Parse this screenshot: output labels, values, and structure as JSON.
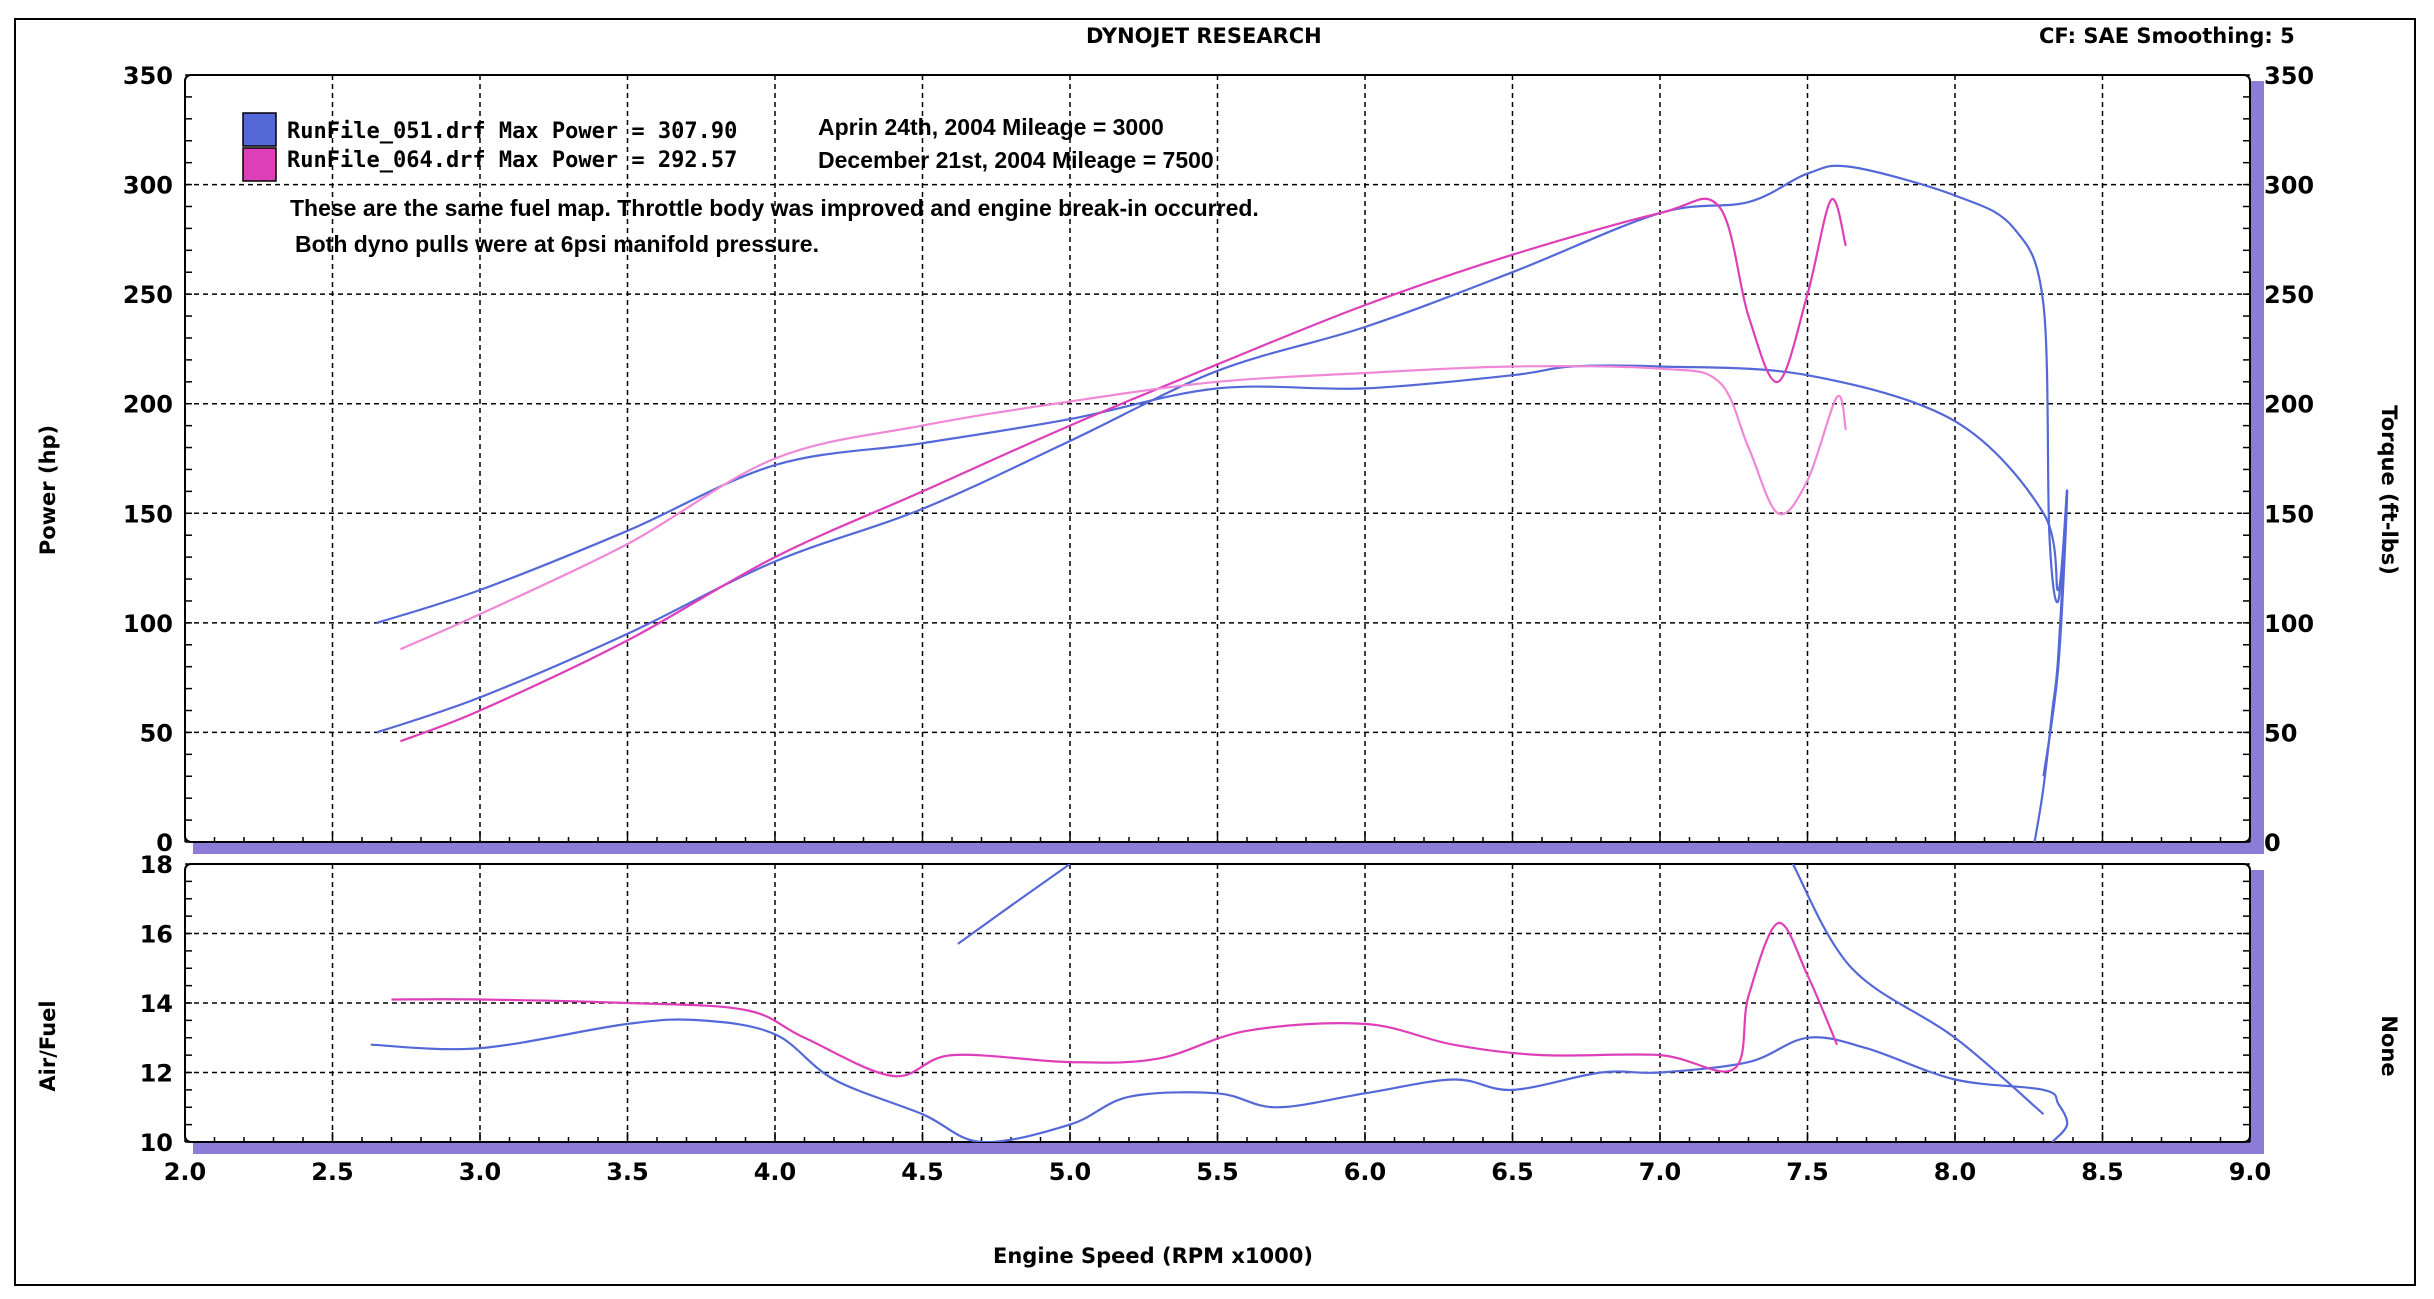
{
  "header": {
    "title": "DYNOJET RESEARCH",
    "correction": "CF: SAE  Smoothing: 5"
  },
  "legend": [
    {
      "label": "RunFile_051.drf Max Power = 307.90",
      "note": "Aprin 24th, 2004  Mileage = 3000",
      "color": "#5468d8"
    },
    {
      "label": "RunFile_064.drf Max Power = 292.57",
      "note": "December 21st, 2004  Mileage = 7500",
      "color": "#de3fb8"
    }
  ],
  "annotation": {
    "line1": "These are the same fuel map.  Throttle body was improved and engine break-in occurred.",
    "line2": "Both dyno pulls were at 6psi manifold pressure."
  },
  "chart_data": [
    {
      "type": "line",
      "xlabel": "Engine Speed (RPM x1000)",
      "ylabel": "Power (hp)",
      "y2label": "Torque (ft-lbs)",
      "xlim": [
        2.0,
        9.0
      ],
      "ylim": [
        0,
        350
      ],
      "y2lim": [
        0,
        350
      ],
      "grid": true,
      "x_ticks": [
        "2.0",
        "2.5",
        "3.0",
        "3.5",
        "4.0",
        "4.5",
        "5.0",
        "5.5",
        "6.0",
        "6.5",
        "7.0",
        "7.5",
        "8.0",
        "8.5",
        "9.0"
      ],
      "y_ticks": [
        "0",
        "50",
        "100",
        "150",
        "200",
        "250",
        "300",
        "350"
      ],
      "series": [
        {
          "name": "RunFile_051.drf Max Power = 307.90",
          "measure": "power",
          "color": "#5468d8",
          "x": [
            2.65,
            3.0,
            3.5,
            4.0,
            4.5,
            5.0,
            5.5,
            6.0,
            6.5,
            7.0,
            7.3,
            7.5,
            7.65,
            8.0,
            8.2,
            8.3,
            8.32,
            8.35,
            8.38,
            8.35,
            8.33,
            8.3,
            8.27
          ],
          "y": [
            50,
            66,
            95,
            128,
            152,
            183,
            215,
            235,
            260,
            287,
            292,
            305,
            308,
            295,
            280,
            245,
            140,
            110,
            160,
            85,
            60,
            25,
            0
          ]
        },
        {
          "name": "RunFile_051.drf Max Power = 307.90",
          "measure": "torque",
          "color": "#5468d8",
          "x": [
            2.65,
            3.0,
            3.5,
            4.0,
            4.5,
            5.0,
            5.5,
            6.0,
            6.5,
            6.7,
            7.0,
            7.5,
            8.0,
            8.3,
            8.35,
            8.38,
            8.35,
            8.3
          ],
          "y": [
            100,
            115,
            142,
            172,
            182,
            193,
            207,
            207,
            213,
            217,
            217,
            213,
            192,
            150,
            115,
            160,
            80,
            30
          ]
        },
        {
          "name": "RunFile_064.drf Max Power = 292.57",
          "measure": "power",
          "color": "#de3fb8",
          "x": [
            2.73,
            3.0,
            3.5,
            4.0,
            4.5,
            5.0,
            5.5,
            6.0,
            6.5,
            7.0,
            7.2,
            7.3,
            7.4,
            7.5,
            7.58,
            7.63
          ],
          "y": [
            46,
            60,
            92,
            130,
            160,
            190,
            218,
            245,
            268,
            287,
            290,
            240,
            210,
            250,
            293,
            272
          ]
        },
        {
          "name": "RunFile_064.drf Max Power = 292.57",
          "measure": "torque",
          "color": "#f088d8",
          "x": [
            2.73,
            3.0,
            3.5,
            4.0,
            4.5,
            5.0,
            5.5,
            6.0,
            6.5,
            7.0,
            7.2,
            7.3,
            7.4,
            7.5,
            7.6,
            7.63
          ],
          "y": [
            88,
            104,
            136,
            175,
            190,
            201,
            210,
            214,
            217,
            216,
            210,
            180,
            150,
            165,
            203,
            188
          ]
        }
      ]
    },
    {
      "type": "line",
      "ylabel": "Air/Fuel",
      "y2label": "None",
      "xlim": [
        2.0,
        9.0
      ],
      "ylim": [
        10,
        18
      ],
      "grid": true,
      "y_ticks": [
        "10",
        "12",
        "14",
        "16",
        "18"
      ],
      "series": [
        {
          "name": "RunFile_051.drf Max Power = 307.90",
          "color": "#5468d8",
          "x": [
            2.63,
            3.0,
            3.5,
            3.75,
            4.0,
            4.2,
            4.5,
            4.7,
            5.0,
            5.2,
            5.5,
            5.7,
            6.0,
            6.3,
            6.5,
            6.8,
            7.0,
            7.3,
            7.5,
            7.7,
            8.0,
            8.3,
            8.35,
            8.38,
            8.33
          ],
          "y": [
            12.8,
            12.7,
            13.4,
            13.5,
            13.1,
            11.8,
            10.8,
            10.0,
            10.5,
            11.3,
            11.4,
            11.0,
            11.4,
            11.8,
            11.5,
            12.0,
            12.0,
            12.3,
            13.0,
            12.7,
            11.8,
            11.5,
            11.1,
            10.5,
            10.0
          ]
        },
        {
          "name": "RunFile_051.drf Max Power = 307.90",
          "color": "#5468d8",
          "x": [
            4.62,
            4.8,
            5.0
          ],
          "y": [
            15.7,
            16.8,
            18.0
          ]
        },
        {
          "name": "RunFile_051.drf Max Power = 307.90",
          "color": "#5468d8",
          "x": [
            7.45,
            7.65,
            8.0,
            8.3
          ],
          "y": [
            18.0,
            15.0,
            13.0,
            10.8
          ]
        },
        {
          "name": "RunFile_064.drf Max Power = 292.57",
          "color": "#de3fb8",
          "x": [
            2.7,
            3.0,
            3.5,
            3.9,
            4.1,
            4.4,
            4.6,
            5.0,
            5.3,
            5.6,
            6.0,
            6.3,
            6.6,
            7.0,
            7.25,
            7.3,
            7.4,
            7.5,
            7.6
          ],
          "y": [
            14.1,
            14.1,
            14.0,
            13.8,
            13.0,
            11.9,
            12.5,
            12.3,
            12.4,
            13.2,
            13.4,
            12.8,
            12.5,
            12.5,
            12.1,
            14.2,
            16.3,
            14.8,
            12.8
          ]
        }
      ]
    }
  ]
}
